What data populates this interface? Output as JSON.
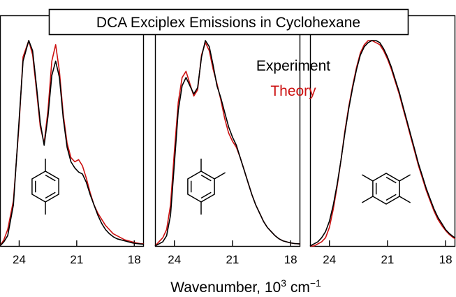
{
  "chart_data": {
    "type": "line",
    "title": "DCA Exciplex Emissions in Cyclohexane",
    "xlabel_main": "Wavenumber, 10",
    "xlabel_exp": "3",
    "xlabel_unit": " cm",
    "xlabel_unit_exp": "−1",
    "xlim": [
      25.0,
      17.5
    ],
    "ylim": [
      0,
      1.05
    ],
    "xticks": [
      24,
      21,
      18
    ],
    "xtick_labels": [
      "24",
      "21",
      "18"
    ],
    "legend": {
      "placement": "top-right-middle",
      "entries": [
        {
          "label": "Experiment",
          "color": "#000000"
        },
        {
          "label": "Theory",
          "color": "#cc1111"
        }
      ]
    },
    "panels": [
      {
        "molecule": "p-xylene",
        "series": [
          {
            "name": "Experiment",
            "color": "#000000",
            "x": [
              25.0,
              24.8,
              24.6,
              24.3,
              24.0,
              23.8,
              23.5,
              23.3,
              23.1,
              22.9,
              22.7,
              22.5,
              22.3,
              22.1,
              21.9,
              21.7,
              21.5,
              21.3,
              21.1,
              20.9,
              20.7,
              20.5,
              20.3,
              20.1,
              19.9,
              19.7,
              19.5,
              19.3,
              19.1,
              18.9,
              18.7,
              18.5,
              18.3,
              18.1,
              17.9,
              17.7,
              17.5
            ],
            "values": [
              0.0,
              0.02,
              0.05,
              0.2,
              0.62,
              0.9,
              1.0,
              0.95,
              0.78,
              0.6,
              0.49,
              0.63,
              0.83,
              0.9,
              0.82,
              0.62,
              0.48,
              0.41,
              0.38,
              0.36,
              0.35,
              0.31,
              0.25,
              0.2,
              0.15,
              0.11,
              0.08,
              0.06,
              0.045,
              0.035,
              0.03,
              0.025,
              0.02,
              0.015,
              0.012,
              0.01,
              0.008
            ]
          },
          {
            "name": "Theory",
            "color": "#cc1111",
            "x": [
              25.0,
              24.8,
              24.6,
              24.3,
              24.0,
              23.8,
              23.5,
              23.3,
              23.1,
              22.9,
              22.7,
              22.5,
              22.3,
              22.1,
              21.9,
              21.7,
              21.5,
              21.3,
              21.1,
              20.9,
              20.7,
              20.5,
              20.3,
              20.1,
              19.9,
              19.7,
              19.5,
              19.3,
              19.1,
              18.9,
              18.7,
              18.5,
              18.3,
              18.1,
              17.9,
              17.7,
              17.5
            ],
            "values": [
              0.0,
              0.03,
              0.08,
              0.22,
              0.6,
              0.92,
              1.0,
              0.93,
              0.76,
              0.58,
              0.5,
              0.66,
              0.9,
              0.98,
              0.85,
              0.64,
              0.5,
              0.43,
              0.41,
              0.42,
              0.39,
              0.33,
              0.26,
              0.2,
              0.16,
              0.13,
              0.1,
              0.08,
              0.06,
              0.05,
              0.04,
              0.03,
              0.025,
              0.02,
              0.015,
              0.012,
              0.01
            ]
          }
        ]
      },
      {
        "molecule": "1,2,4-trimethylbenzene",
        "series": [
          {
            "name": "Experiment",
            "color": "#000000",
            "x": [
              25.0,
              24.8,
              24.6,
              24.4,
              24.2,
              24.0,
              23.8,
              23.6,
              23.4,
              23.2,
              23.0,
              22.8,
              22.6,
              22.4,
              22.2,
              22.0,
              21.8,
              21.6,
              21.4,
              21.2,
              21.0,
              20.8,
              20.6,
              20.4,
              20.2,
              20.0,
              19.8,
              19.6,
              19.4,
              19.2,
              19.0,
              18.8,
              18.6,
              18.4,
              18.2,
              18.0,
              17.8,
              17.5
            ],
            "values": [
              0.0,
              0.01,
              0.02,
              0.05,
              0.15,
              0.4,
              0.66,
              0.78,
              0.82,
              0.78,
              0.74,
              0.77,
              0.92,
              1.0,
              0.97,
              0.88,
              0.78,
              0.72,
              0.65,
              0.58,
              0.53,
              0.49,
              0.43,
              0.37,
              0.31,
              0.25,
              0.2,
              0.16,
              0.12,
              0.09,
              0.07,
              0.05,
              0.035,
              0.025,
              0.02,
              0.015,
              0.012,
              0.01
            ]
          },
          {
            "name": "Theory",
            "color": "#cc1111",
            "x": [
              25.0,
              24.8,
              24.6,
              24.4,
              24.2,
              24.0,
              23.8,
              23.6,
              23.4,
              23.2,
              23.0,
              22.8,
              22.6,
              22.4,
              22.2,
              22.0,
              21.8,
              21.6,
              21.4,
              21.2,
              21.0,
              20.8,
              20.6,
              20.4,
              20.2,
              20.0,
              19.8,
              19.6,
              19.4,
              19.2,
              19.0,
              18.8,
              18.6,
              18.4,
              18.2,
              18.0,
              17.8,
              17.5
            ],
            "values": [
              0.0,
              0.02,
              0.04,
              0.08,
              0.2,
              0.46,
              0.7,
              0.82,
              0.85,
              0.79,
              0.73,
              0.76,
              0.93,
              0.99,
              0.95,
              0.86,
              0.79,
              0.71,
              0.62,
              0.55,
              0.51,
              0.48,
              0.43,
              0.37,
              0.31,
              0.25,
              0.2,
              0.16,
              0.12,
              0.09,
              0.07,
              0.05,
              0.035,
              0.025,
              0.02,
              0.015,
              0.012,
              0.01
            ]
          }
        ]
      },
      {
        "molecule": "1,2,4,5-tetramethylbenzene",
        "series": [
          {
            "name": "Experiment",
            "color": "#000000",
            "x": [
              25.0,
              24.8,
              24.6,
              24.4,
              24.2,
              24.0,
              23.8,
              23.6,
              23.4,
              23.2,
              23.0,
              22.8,
              22.6,
              22.4,
              22.2,
              22.0,
              21.8,
              21.6,
              21.4,
              21.2,
              21.0,
              20.8,
              20.6,
              20.4,
              20.2,
              20.0,
              19.8,
              19.6,
              19.4,
              19.2,
              19.0,
              18.8,
              18.6,
              18.4,
              18.2,
              18.0,
              17.8,
              17.6,
              17.5
            ],
            "values": [
              0.0,
              0.01,
              0.02,
              0.04,
              0.07,
              0.12,
              0.2,
              0.3,
              0.42,
              0.55,
              0.67,
              0.77,
              0.86,
              0.93,
              0.97,
              0.99,
              1.0,
              1.0,
              0.99,
              0.96,
              0.92,
              0.87,
              0.81,
              0.75,
              0.68,
              0.61,
              0.54,
              0.47,
              0.4,
              0.34,
              0.28,
              0.23,
              0.18,
              0.14,
              0.11,
              0.08,
              0.06,
              0.045,
              0.04
            ]
          },
          {
            "name": "Theory",
            "color": "#cc1111",
            "x": [
              25.0,
              24.8,
              24.6,
              24.4,
              24.2,
              24.0,
              23.8,
              23.6,
              23.4,
              23.2,
              23.0,
              22.8,
              22.6,
              22.4,
              22.2,
              22.0,
              21.8,
              21.6,
              21.4,
              21.2,
              21.0,
              20.8,
              20.6,
              20.4,
              20.2,
              20.0,
              19.8,
              19.6,
              19.4,
              19.2,
              19.0,
              18.8,
              18.6,
              18.4,
              18.2,
              18.0,
              17.8,
              17.6,
              17.5
            ],
            "values": [
              0.0,
              0.0,
              0.01,
              0.02,
              0.04,
              0.09,
              0.18,
              0.29,
              0.42,
              0.56,
              0.68,
              0.78,
              0.87,
              0.94,
              0.98,
              1.0,
              1.0,
              0.99,
              0.98,
              0.95,
              0.91,
              0.86,
              0.8,
              0.74,
              0.67,
              0.6,
              0.53,
              0.46,
              0.39,
              0.33,
              0.27,
              0.22,
              0.17,
              0.13,
              0.1,
              0.075,
              0.055,
              0.04,
              0.035
            ]
          }
        ]
      }
    ]
  }
}
